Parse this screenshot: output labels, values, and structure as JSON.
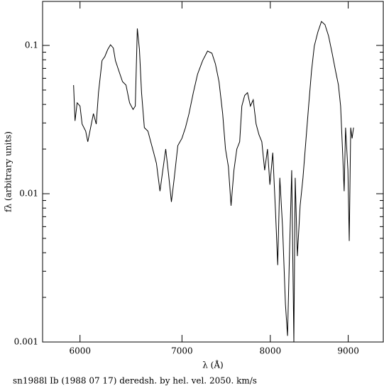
{
  "chart_data": {
    "type": "line",
    "ylabel": "fλ (arbitrary units)",
    "xlabel": "λ (Å)",
    "caption": "sn1988l Ib (1988 07 17) deredsh. by hel. vel.  2050. km/s",
    "xscale": "log",
    "yscale": "log",
    "xlim": [
      5670,
      9490
    ],
    "ylim": [
      0.001,
      0.198
    ],
    "xticks": [
      6000,
      7000,
      8000,
      9000
    ],
    "yticks": [
      0.001,
      0.01,
      0.1
    ],
    "grid": false,
    "color": "#000000",
    "x": [
      5942,
      5955,
      5974,
      6000,
      6019,
      6052,
      6071,
      6097,
      6123,
      6149,
      6170,
      6203,
      6229,
      6256,
      6283,
      6310,
      6330,
      6364,
      6398,
      6432,
      6467,
      6501,
      6523,
      6543,
      6564,
      6585,
      6613,
      6649,
      6677,
      6706,
      6735,
      6771,
      6800,
      6830,
      6859,
      6889,
      6919,
      6956,
      6999,
      7037,
      7075,
      7121,
      7167,
      7222,
      7276,
      7324,
      7363,
      7403,
      7444,
      7476,
      7509,
      7539,
      7572,
      7605,
      7638,
      7663,
      7696,
      7729,
      7763,
      7796,
      7830,
      7864,
      7898,
      7932,
      7966,
      7995,
      8030,
      8064,
      8090,
      8116,
      8150,
      8185,
      8211,
      8237,
      8263,
      8290,
      8307,
      8334,
      8369,
      8405,
      8441,
      8477,
      8514,
      8550,
      8596,
      8643,
      8689,
      8736,
      8783,
      8830,
      8868,
      8897,
      8926,
      8945,
      8964,
      8996,
      9014,
      9034,
      9053,
      9073
    ],
    "values": [
      0.054,
      0.031,
      0.041,
      0.039,
      0.0295,
      0.0264,
      0.0224,
      0.0279,
      0.0347,
      0.0295,
      0.048,
      0.079,
      0.084,
      0.0936,
      0.101,
      0.096,
      0.079,
      0.067,
      0.057,
      0.054,
      0.041,
      0.037,
      0.039,
      0.13,
      0.094,
      0.048,
      0.0279,
      0.0264,
      0.0224,
      0.019,
      0.016,
      0.0104,
      0.0144,
      0.02,
      0.0136,
      0.0088,
      0.0128,
      0.0211,
      0.0236,
      0.0279,
      0.0347,
      0.048,
      0.064,
      0.079,
      0.0916,
      0.0886,
      0.075,
      0.057,
      0.0347,
      0.02,
      0.0152,
      0.0083,
      0.0144,
      0.02,
      0.0224,
      0.039,
      0.046,
      0.048,
      0.039,
      0.043,
      0.0295,
      0.025,
      0.0224,
      0.0144,
      0.02,
      0.0115,
      0.0189,
      0.0074,
      0.0033,
      0.0128,
      0.0059,
      0.0018,
      0.0011,
      0.0043,
      0.0144,
      0.001,
      0.0128,
      0.0038,
      0.0083,
      0.0128,
      0.0224,
      0.039,
      0.067,
      0.099,
      0.123,
      0.145,
      0.138,
      0.116,
      0.089,
      0.067,
      0.054,
      0.039,
      0.018,
      0.0104,
      0.0279,
      0.0144,
      0.0048,
      0.0279,
      0.0236,
      0.0279
    ]
  }
}
